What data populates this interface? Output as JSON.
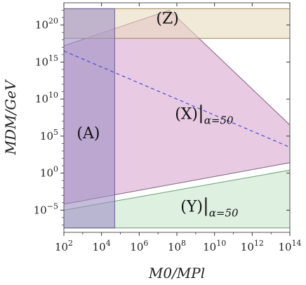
{
  "chart_data": {
    "type": "area",
    "xscale": "log",
    "yscale": "log",
    "xlim": [
      100,
      100000000000000
    ],
    "ylim": [
      1e-08,
      1e+23
    ],
    "xlabel": "M0/MPl",
    "ylabel": "MDM/GeV",
    "x_ticks": [
      {
        "exp": 2,
        "label": "10",
        "sup": "2"
      },
      {
        "exp": 4,
        "label": "10",
        "sup": "4"
      },
      {
        "exp": 6,
        "label": "10",
        "sup": "6"
      },
      {
        "exp": 8,
        "label": "10",
        "sup": "8"
      },
      {
        "exp": 10,
        "label": "10",
        "sup": "10"
      },
      {
        "exp": 12,
        "label": "10",
        "sup": "12"
      },
      {
        "exp": 14,
        "label": "10",
        "sup": "14"
      }
    ],
    "y_ticks": [
      {
        "exp": -5,
        "label": "10",
        "sup": "−5"
      },
      {
        "exp": 0,
        "label": "10",
        "sup": "0"
      },
      {
        "exp": 5,
        "label": "10",
        "sup": "5"
      },
      {
        "exp": 10,
        "label": "10",
        "sup": "10"
      },
      {
        "exp": 15,
        "label": "10",
        "sup": "15"
      },
      {
        "exp": 20,
        "label": "10",
        "sup": "20"
      }
    ],
    "grid": false,
    "regions": [
      {
        "name": "(X)",
        "label_main": "(X)",
        "label_sub": "α=50",
        "color": "#d9a8cf",
        "edge": "#8a5a80",
        "log_polygon": [
          [
            2,
            -4.2
          ],
          [
            2,
            17.2
          ],
          [
            7.6,
            22
          ],
          [
            14,
            6.5
          ],
          [
            14,
            1.4
          ]
        ],
        "label_pos": [
          9.2,
          7.3
        ]
      },
      {
        "name": "(Y)",
        "label_main": "(Y)",
        "label_sub": "α=50",
        "color": "#c8e6cc",
        "edge": "#6e9b74",
        "log_polygon": [
          [
            2,
            -5.0
          ],
          [
            14,
            0.4
          ],
          [
            14,
            -7.4
          ],
          [
            2,
            -7.4
          ]
        ],
        "label_pos": [
          9.5,
          -5.2
        ]
      },
      {
        "name": "(Z)",
        "label_main": "(Z)",
        "label_sub": "",
        "color": "#e9dcc0",
        "edge": "#a08a55",
        "log_polygon": [
          [
            2,
            18.2
          ],
          [
            14,
            18.2
          ],
          [
            14,
            22.2
          ],
          [
            2,
            22.2
          ]
        ],
        "label_pos": [
          7.5,
          20.2
        ]
      },
      {
        "name": "(A)",
        "label_main": "(A)",
        "label_sub": "",
        "color": "#9f8fc4",
        "edge": "#6b5f9c",
        "log_polygon": [
          [
            2,
            -7.4
          ],
          [
            4.7,
            -7.4
          ],
          [
            4.7,
            22.2
          ],
          [
            2,
            22.2
          ]
        ],
        "label_pos": [
          3.3,
          4.7
        ]
      }
    ],
    "series": [
      {
        "style": "dashed",
        "color": "#4a4ae0",
        "log_x": [
          2,
          14
        ],
        "log_y": [
          16.5,
          3.5
        ]
      }
    ]
  }
}
